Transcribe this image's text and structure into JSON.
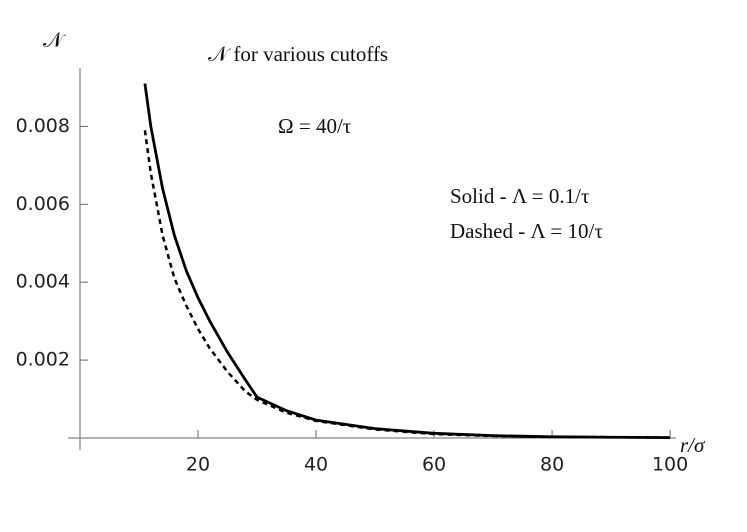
{
  "chart_data": {
    "type": "line",
    "title": "𝒩 for various cutoffs",
    "y_label": "𝒩",
    "x_label": "r/σ",
    "annotation": "Ω = 40/τ",
    "x": [
      11,
      12,
      14,
      16,
      18,
      20,
      22,
      25,
      28,
      30,
      35,
      40,
      50,
      60,
      70,
      80,
      90,
      100
    ],
    "series": [
      {
        "name": "Solid - Λ = 0.1/τ",
        "color": "#000000",
        "style": "solid",
        "values": [
          0.0091,
          0.008,
          0.0064,
          0.0052,
          0.0043,
          0.0036,
          0.003,
          0.0022,
          0.0015,
          0.00105,
          0.0007,
          0.00046,
          0.00024,
          0.00012,
          6e-05,
          3e-05,
          2e-05,
          1e-05
        ]
      },
      {
        "name": "Dashed - Λ = 10/τ",
        "color": "#000000",
        "style": "dashed",
        "values": [
          0.0079,
          0.0068,
          0.0052,
          0.0041,
          0.0034,
          0.0028,
          0.0023,
          0.0017,
          0.0012,
          0.00098,
          0.00065,
          0.00044,
          0.00022,
          0.0001,
          5e-05,
          3e-05,
          2e-05,
          1e-05
        ]
      }
    ],
    "xlim": [
      0,
      101
    ],
    "ylim": [
      0,
      0.0095
    ],
    "xticks": [
      20,
      40,
      60,
      80,
      100
    ],
    "yticks": [
      0.002,
      0.004,
      0.006,
      0.008
    ],
    "grid": false
  }
}
